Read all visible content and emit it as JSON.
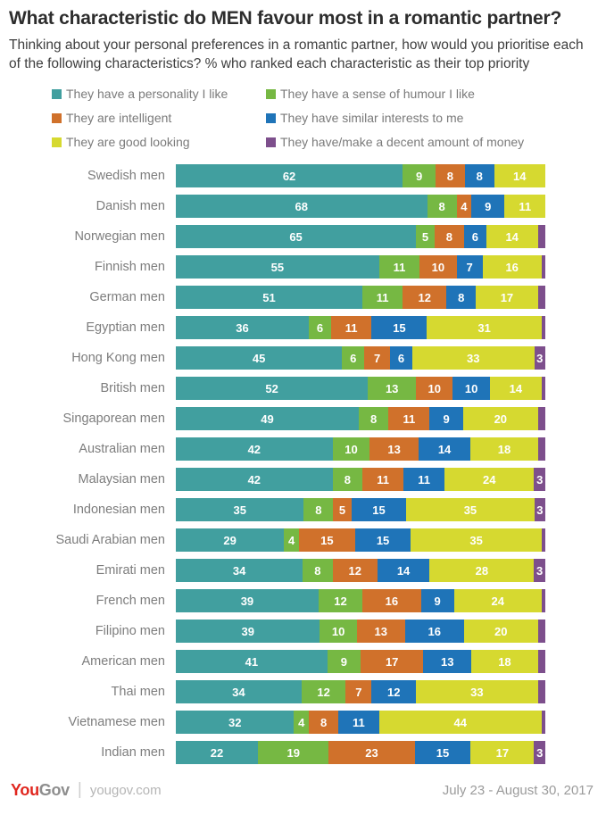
{
  "header": {
    "title": "What characteristic do MEN favour most in a romantic partner?",
    "subtitle": "Thinking about your personal preferences in a romantic partner, how would you prioritise each of the following characteristics? % who ranked each characteristic as their top priority"
  },
  "footer": {
    "brand_you": "You",
    "brand_gov": "Gov",
    "brand_divider": "|",
    "site": "yougov.com",
    "date_range": "July 23 - August 30, 2017",
    "brand_red": "#e0261e"
  },
  "chart_data": {
    "type": "bar",
    "stacked": true,
    "orientation": "horizontal",
    "value_unit": "%",
    "legend_position": "top",
    "series": [
      {
        "name": "They have a personality I like",
        "color": "#419f9f"
      },
      {
        "name": "They have a sense of humour I like",
        "color": "#76b843"
      },
      {
        "name": "They are intelligent",
        "color": "#d0712b"
      },
      {
        "name": "They have similar interests to me",
        "color": "#1f74b8"
      },
      {
        "name": "They are good looking",
        "color": "#d6d930"
      },
      {
        "name": "They have/make a decent amount of money",
        "color": "#7d4f8c"
      }
    ],
    "categories": [
      "Swedish men",
      "Danish men",
      "Norwegian men",
      "Finnish men",
      "German men",
      "Egyptian men",
      "Hong Kong men",
      "British men",
      "Singaporean men",
      "Australian men",
      "Malaysian men",
      "Indonesian men",
      "Saudi Arabian men",
      "Emirati men",
      "French men",
      "Filipino men",
      "American men",
      "Thai men",
      "Vietnamese men",
      "Indian men"
    ],
    "rows": [
      {
        "values": [
          62,
          9,
          8,
          8,
          14,
          0
        ],
        "labels": [
          "62",
          "9",
          "8",
          "8",
          "14",
          ""
        ]
      },
      {
        "values": [
          68,
          8,
          4,
          9,
          11,
          0
        ],
        "labels": [
          "68",
          "8",
          "4",
          "9",
          "11",
          ""
        ]
      },
      {
        "values": [
          65,
          5,
          8,
          6,
          14,
          2
        ],
        "labels": [
          "65",
          "5",
          "8",
          "6",
          "14",
          ""
        ]
      },
      {
        "values": [
          55,
          11,
          10,
          7,
          16,
          1
        ],
        "labels": [
          "55",
          "11",
          "10",
          "7",
          "16",
          ""
        ]
      },
      {
        "values": [
          51,
          11,
          12,
          8,
          17,
          2
        ],
        "labels": [
          "51",
          "11",
          "12",
          "8",
          "17",
          ""
        ]
      },
      {
        "values": [
          36,
          6,
          11,
          15,
          31,
          1
        ],
        "labels": [
          "36",
          "6",
          "11",
          "15",
          "31",
          ""
        ]
      },
      {
        "values": [
          45,
          6,
          7,
          6,
          33,
          3
        ],
        "labels": [
          "45",
          "6",
          "7",
          "6",
          "33",
          "3"
        ]
      },
      {
        "values": [
          52,
          13,
          10,
          10,
          14,
          1
        ],
        "labels": [
          "52",
          "13",
          "10",
          "10",
          "14",
          ""
        ]
      },
      {
        "values": [
          49,
          8,
          11,
          9,
          20,
          2
        ],
        "labels": [
          "49",
          "8",
          "11",
          "9",
          "20",
          ""
        ]
      },
      {
        "values": [
          42,
          10,
          13,
          14,
          18,
          2
        ],
        "labels": [
          "42",
          "10",
          "13",
          "14",
          "18",
          ""
        ]
      },
      {
        "values": [
          42,
          8,
          11,
          11,
          24,
          3
        ],
        "labels": [
          "42",
          "8",
          "11",
          "11",
          "24",
          "3"
        ]
      },
      {
        "values": [
          35,
          8,
          5,
          15,
          35,
          3
        ],
        "labels": [
          "35",
          "8",
          "5",
          "15",
          "35",
          "3"
        ]
      },
      {
        "values": [
          29,
          4,
          15,
          15,
          35,
          1
        ],
        "labels": [
          "29",
          "4",
          "15",
          "15",
          "35",
          ""
        ]
      },
      {
        "values": [
          34,
          8,
          12,
          14,
          28,
          3
        ],
        "labels": [
          "34",
          "8",
          "12",
          "14",
          "28",
          "3"
        ]
      },
      {
        "values": [
          39,
          12,
          16,
          9,
          24,
          1
        ],
        "labels": [
          "39",
          "12",
          "16",
          "9",
          "24",
          ""
        ]
      },
      {
        "values": [
          39,
          10,
          13,
          16,
          20,
          2
        ],
        "labels": [
          "39",
          "10",
          "13",
          "16",
          "20",
          ""
        ]
      },
      {
        "values": [
          41,
          9,
          17,
          13,
          18,
          2
        ],
        "labels": [
          "41",
          "9",
          "17",
          "13",
          "18",
          ""
        ]
      },
      {
        "values": [
          34,
          12,
          7,
          12,
          33,
          2
        ],
        "labels": [
          "34",
          "12",
          "7",
          "12",
          "33",
          ""
        ]
      },
      {
        "values": [
          32,
          4,
          8,
          11,
          44,
          1
        ],
        "labels": [
          "32",
          "4",
          "8",
          "11",
          "44",
          ""
        ]
      },
      {
        "values": [
          22,
          19,
          23,
          15,
          17,
          3
        ],
        "labels": [
          "22",
          "19",
          "23",
          "15",
          "17",
          "3"
        ]
      }
    ]
  }
}
